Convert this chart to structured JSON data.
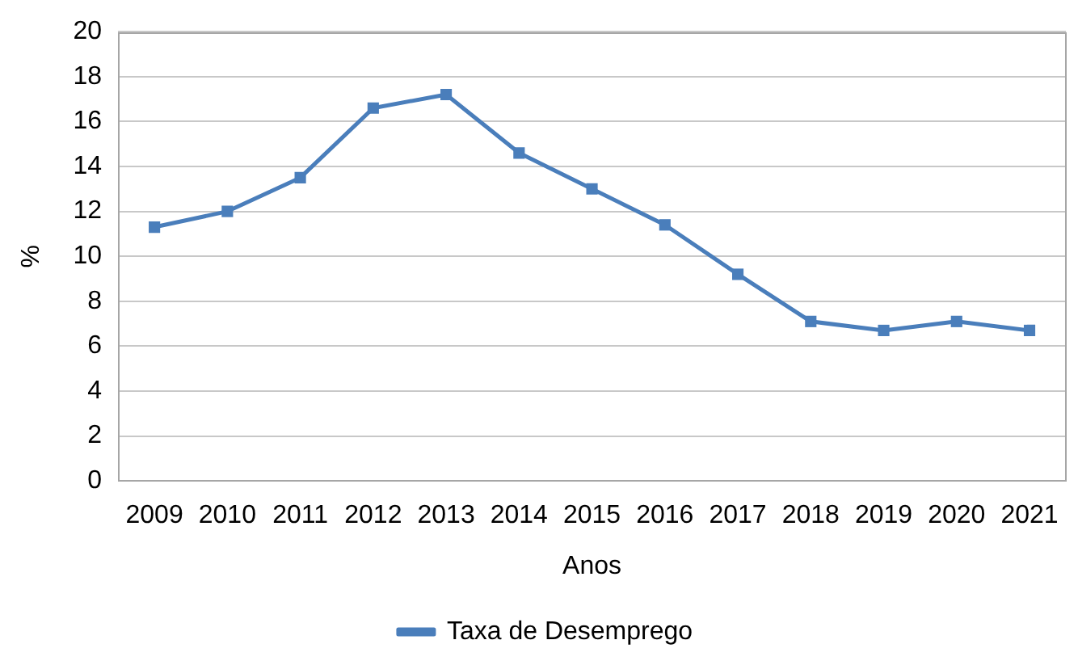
{
  "chart_data": {
    "type": "line",
    "xlabel": "Anos",
    "ylabel": "%",
    "categories": [
      "2009",
      "2010",
      "2011",
      "2012",
      "2013",
      "2014",
      "2015",
      "2016",
      "2017",
      "2018",
      "2019",
      "2020",
      "2021"
    ],
    "series": [
      {
        "name": "Taxa de Desemprego",
        "color": "#4a7ebb",
        "values": [
          11.3,
          12.0,
          13.5,
          16.6,
          17.2,
          14.6,
          13.0,
          11.4,
          9.2,
          7.1,
          6.7,
          7.1,
          6.7
        ]
      }
    ],
    "ylim": [
      0,
      20
    ],
    "yticks": [
      0,
      2,
      4,
      6,
      8,
      10,
      12,
      14,
      16,
      18,
      20
    ],
    "grid": "y",
    "legend": "bottom",
    "marker": "square",
    "line_style": "solid"
  }
}
